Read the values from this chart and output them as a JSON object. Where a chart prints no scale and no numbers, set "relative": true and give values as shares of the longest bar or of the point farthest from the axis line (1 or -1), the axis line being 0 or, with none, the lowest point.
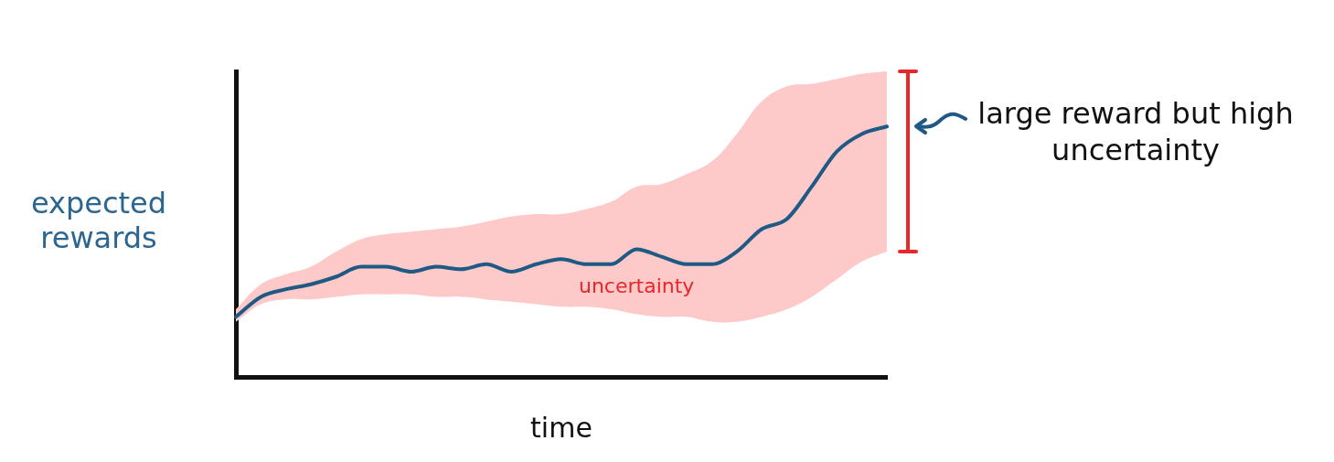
{
  "chart_data": {
    "type": "line",
    "relative": true,
    "xlabel": "time",
    "ylabel": "expected rewards",
    "categories": [
      null,
      null,
      null,
      null,
      null,
      null,
      null,
      null,
      null,
      null,
      null,
      null,
      null,
      null,
      null,
      null,
      null,
      null,
      null,
      null,
      null,
      null,
      null,
      null,
      null,
      null,
      null
    ],
    "series": [
      {
        "color": "#1f5a85",
        "values": [
          0.24,
          0.32,
          0.35,
          0.37,
          0.4,
          0.44,
          0.44,
          0.42,
          0.44,
          0.43,
          0.45,
          0.42,
          0.45,
          0.47,
          0.45,
          0.45,
          0.51,
          0.48,
          0.45,
          0.45,
          0.5,
          0.59,
          0.63,
          0.76,
          0.9,
          0.97,
          1
        ],
        "lower": [
          0.22,
          0.29,
          0.31,
          0.31,
          0.32,
          0.33,
          0.33,
          0.33,
          0.32,
          0.32,
          0.31,
          0.3,
          0.29,
          0.28,
          0.28,
          0.27,
          0.25,
          0.24,
          0.24,
          0.22,
          0.22,
          0.24,
          0.27,
          0.32,
          0.39,
          0.46,
          0.5
        ],
        "upper": [
          0.27,
          0.37,
          0.41,
          0.44,
          0.5,
          0.55,
          0.57,
          0.58,
          0.59,
          0.6,
          0.62,
          0.64,
          0.65,
          0.65,
          0.67,
          0.7,
          0.76,
          0.77,
          0.81,
          0.86,
          0.97,
          1.1,
          1.16,
          1.17,
          1.19,
          1.21,
          1.22
        ]
      }
    ],
    "annotations": [
      "uncertainty",
      "large reward but high uncertainty"
    ],
    "marker": "none",
    "grid": false,
    "legend": false
  }
}
